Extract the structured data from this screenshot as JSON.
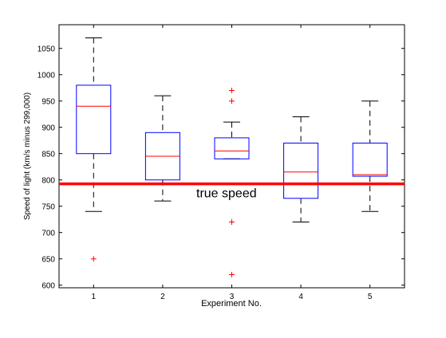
{
  "chart_data": {
    "type": "box",
    "title": "",
    "xlabel": "Experiment No.",
    "ylabel": "Speed of light (km/s minus 299,000)",
    "ylim": [
      595,
      1095
    ],
    "xlim": [
      0.5,
      5.5
    ],
    "xticks": [
      "1",
      "2",
      "3",
      "4",
      "5"
    ],
    "yticks": [
      "600",
      "650",
      "700",
      "750",
      "800",
      "850",
      "900",
      "950",
      "1000",
      "1050"
    ],
    "grid": false,
    "boxes": [
      {
        "name": "1",
        "lower_whisker": 740,
        "q1": 850,
        "median": 940,
        "q3": 980,
        "upper_whisker": 1070,
        "outliers": [
          650
        ]
      },
      {
        "name": "2",
        "lower_whisker": 760,
        "q1": 800,
        "median": 845,
        "q3": 890,
        "upper_whisker": 960,
        "outliers": []
      },
      {
        "name": "3",
        "lower_whisker": 840,
        "q1": 840,
        "median": 855,
        "q3": 880,
        "upper_whisker": 910,
        "outliers": [
          620,
          720,
          950,
          970
        ]
      },
      {
        "name": "4",
        "lower_whisker": 720,
        "q1": 765,
        "median": 815,
        "q3": 870,
        "upper_whisker": 920,
        "outliers": []
      },
      {
        "name": "5",
        "lower_whisker": 740,
        "q1": 807,
        "median": 810,
        "q3": 870,
        "upper_whisker": 950,
        "outliers": []
      }
    ],
    "reference_line": {
      "value": 792.458,
      "label": "true speed",
      "color": "#ff0000"
    },
    "colors": {
      "box": "#0000ff",
      "median": "#ff0000",
      "whisker": "#000000",
      "outlier": "#ff0000"
    }
  }
}
